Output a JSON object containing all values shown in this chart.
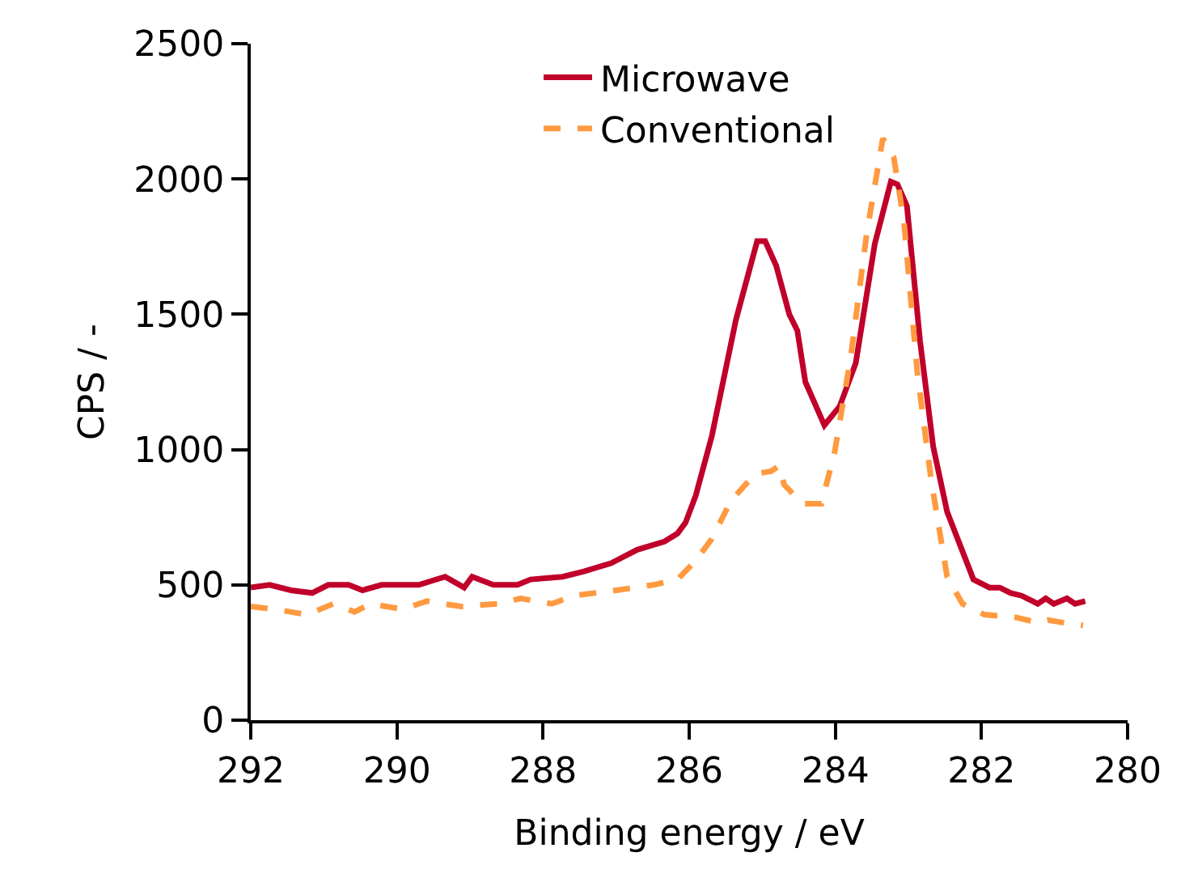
{
  "chart_data": {
    "type": "line",
    "xlabel": "Binding energy / eV",
    "ylabel": "CPS / -",
    "xlim": [
      292,
      280
    ],
    "xticks": [
      292,
      290,
      288,
      286,
      284,
      282,
      280
    ],
    "ylim": [
      0,
      2500
    ],
    "yticks": [
      0,
      500,
      1000,
      1500,
      2000,
      2500
    ],
    "legend": "top",
    "marker": "none",
    "series": [
      {
        "name": "Microwave",
        "color": "#c0002a",
        "line_style": "solid",
        "x": [
          292.0,
          291.74,
          291.45,
          291.16,
          290.94,
          290.66,
          290.47,
          290.21,
          289.7,
          289.34,
          289.08,
          288.97,
          288.68,
          288.35,
          288.17,
          287.73,
          287.44,
          287.07,
          286.71,
          286.34,
          286.16,
          286.05,
          285.91,
          285.69,
          285.36,
          285.07,
          284.96,
          284.81,
          284.63,
          284.52,
          284.41,
          284.15,
          283.94,
          283.72,
          283.46,
          283.24,
          283.15,
          283.02,
          282.84,
          282.66,
          282.47,
          282.11,
          281.89,
          281.75,
          281.6,
          281.45,
          281.23,
          281.12,
          281.01,
          280.83,
          280.72,
          280.58
        ],
        "values": [
          490,
          500,
          480,
          470,
          500,
          500,
          480,
          500,
          500,
          530,
          490,
          530,
          500,
          500,
          520,
          530,
          550,
          580,
          630,
          660,
          690,
          730,
          830,
          1050,
          1480,
          1770,
          1770,
          1680,
          1500,
          1440,
          1250,
          1090,
          1160,
          1320,
          1760,
          1990,
          1980,
          1900,
          1400,
          1010,
          770,
          520,
          490,
          490,
          470,
          460,
          430,
          450,
          430,
          450,
          430,
          440
        ]
      },
      {
        "name": "Conventional",
        "color": "#ff9a40",
        "line_style": "dashed",
        "x": [
          292.0,
          291.67,
          291.23,
          290.87,
          290.58,
          290.36,
          289.92,
          289.59,
          289.12,
          288.61,
          288.31,
          287.88,
          287.58,
          287.0,
          286.49,
          286.16,
          285.91,
          285.69,
          285.43,
          285.1,
          284.88,
          284.77,
          284.7,
          284.45,
          284.19,
          284.01,
          283.79,
          283.57,
          283.35,
          283.2,
          283.06,
          282.88,
          282.69,
          282.47,
          282.26,
          281.96,
          281.53,
          281.23,
          281.09,
          280.87,
          280.61
        ],
        "values": [
          420,
          410,
          390,
          430,
          400,
          430,
          410,
          440,
          420,
          430,
          450,
          430,
          460,
          480,
          500,
          520,
          590,
          670,
          810,
          910,
          920,
          940,
          870,
          800,
          800,
          990,
          1340,
          1800,
          2150,
          2080,
          1840,
          1290,
          890,
          530,
          430,
          390,
          380,
          360,
          370,
          360,
          350
        ]
      }
    ]
  }
}
